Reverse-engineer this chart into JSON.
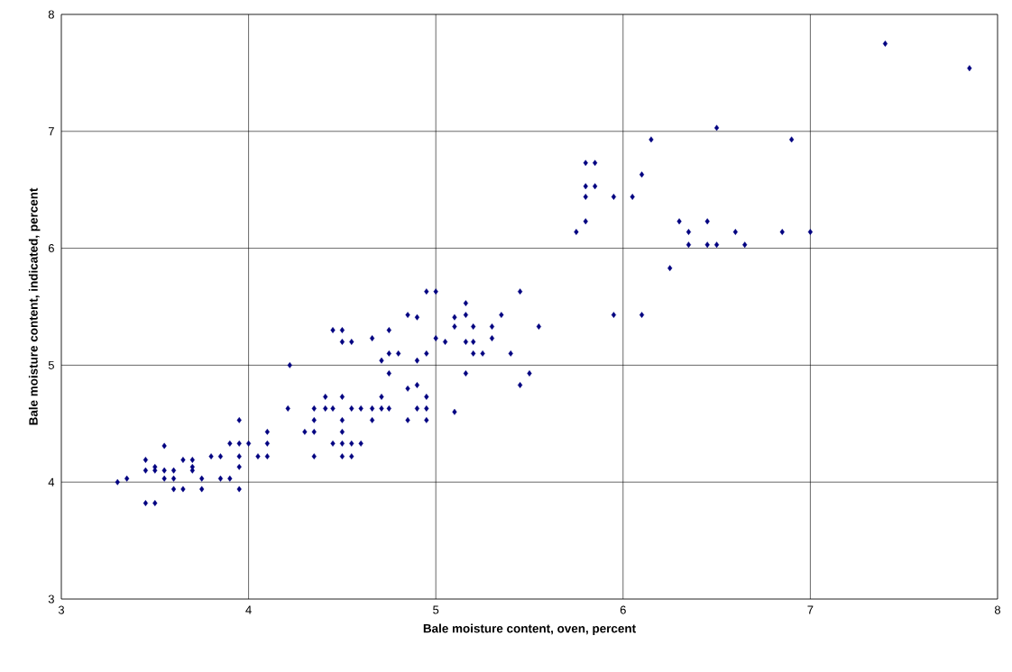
{
  "chart_data": {
    "type": "scatter",
    "xlabel": "Bale moisture content, oven, percent",
    "ylabel": "Bale moisture content, indicated, percent",
    "xlim": [
      3,
      8
    ],
    "ylim": [
      3,
      8
    ],
    "xticks": [
      3,
      4,
      5,
      6,
      7,
      8
    ],
    "yticks": [
      3,
      4,
      5,
      6,
      7,
      8
    ],
    "grid": true,
    "marker": "diamond",
    "series": [
      {
        "color": "#000080",
        "x": [
          3.3,
          3.35,
          3.45,
          3.45,
          3.45,
          3.5,
          3.5,
          3.5,
          3.55,
          3.55,
          3.55,
          3.6,
          3.6,
          3.6,
          3.65,
          3.65,
          3.7,
          3.7,
          3.7,
          3.75,
          3.75,
          3.8,
          3.85,
          3.85,
          3.9,
          3.9,
          3.95,
          3.95,
          3.95,
          3.95,
          3.95,
          4.0,
          4.05,
          4.1,
          4.1,
          4.1,
          4.95,
          5.0,
          5.16,
          4.85,
          4.9,
          5.1,
          5.16,
          5.35,
          5.45,
          4.45,
          4.5,
          4.5,
          4.55,
          4.66,
          4.75,
          5.1,
          5.2,
          5.3,
          5.55,
          5.0,
          5.05,
          5.16,
          5.2,
          5.3,
          4.75,
          4.8,
          4.95,
          5.2,
          5.25,
          5.4,
          4.71,
          4.9,
          4.22,
          4.75,
          5.16,
          5.5,
          5.45,
          4.85,
          4.9,
          4.41,
          4.5,
          4.71,
          4.95,
          4.21,
          4.35,
          4.41,
          4.45,
          4.55,
          4.6,
          4.66,
          4.71,
          4.75,
          4.9,
          4.95,
          5.1,
          4.35,
          4.5,
          4.66,
          4.85,
          4.95,
          4.3,
          4.35,
          4.5,
          4.45,
          4.5,
          4.55,
          4.6,
          4.35,
          4.5,
          4.55,
          6.5,
          6.15,
          6.9,
          5.8,
          5.85,
          6.1,
          5.8,
          5.85,
          5.8,
          5.95,
          6.05,
          5.8,
          6.3,
          6.45,
          5.75,
          6.35,
          6.6,
          6.85,
          7.0,
          6.35,
          6.45,
          6.5,
          6.65,
          6.25,
          5.95,
          6.1,
          7.4,
          7.85
        ],
        "values": [
          4.0,
          4.03,
          4.19,
          4.1,
          3.82,
          4.1,
          4.13,
          3.82,
          4.31,
          4.1,
          4.03,
          4.1,
          4.03,
          3.94,
          4.19,
          3.94,
          4.19,
          4.13,
          4.1,
          4.03,
          3.94,
          4.22,
          4.22,
          4.03,
          4.33,
          4.03,
          4.53,
          4.33,
          4.22,
          4.13,
          3.94,
          4.33,
          4.22,
          4.43,
          4.33,
          4.22,
          5.63,
          5.63,
          5.53,
          5.43,
          5.41,
          5.41,
          5.43,
          5.43,
          5.63,
          5.3,
          5.3,
          5.2,
          5.2,
          5.23,
          5.3,
          5.33,
          5.33,
          5.33,
          5.33,
          5.23,
          5.2,
          5.2,
          5.2,
          5.23,
          5.1,
          5.1,
          5.1,
          5.1,
          5.1,
          5.1,
          5.04,
          5.04,
          5.0,
          4.93,
          4.93,
          4.93,
          4.83,
          4.8,
          4.83,
          4.73,
          4.73,
          4.73,
          4.73,
          4.63,
          4.63,
          4.63,
          4.63,
          4.63,
          4.63,
          4.63,
          4.63,
          4.63,
          4.63,
          4.63,
          4.6,
          4.53,
          4.53,
          4.53,
          4.53,
          4.53,
          4.43,
          4.43,
          4.43,
          4.33,
          4.33,
          4.33,
          4.33,
          4.22,
          4.22,
          4.22,
          7.03,
          6.93,
          6.93,
          6.73,
          6.73,
          6.63,
          6.53,
          6.53,
          6.44,
          6.44,
          6.44,
          6.23,
          6.23,
          6.23,
          6.14,
          6.14,
          6.14,
          6.14,
          6.14,
          6.03,
          6.03,
          6.03,
          6.03,
          5.83,
          5.43,
          5.43,
          7.75,
          7.54
        ]
      }
    ]
  }
}
